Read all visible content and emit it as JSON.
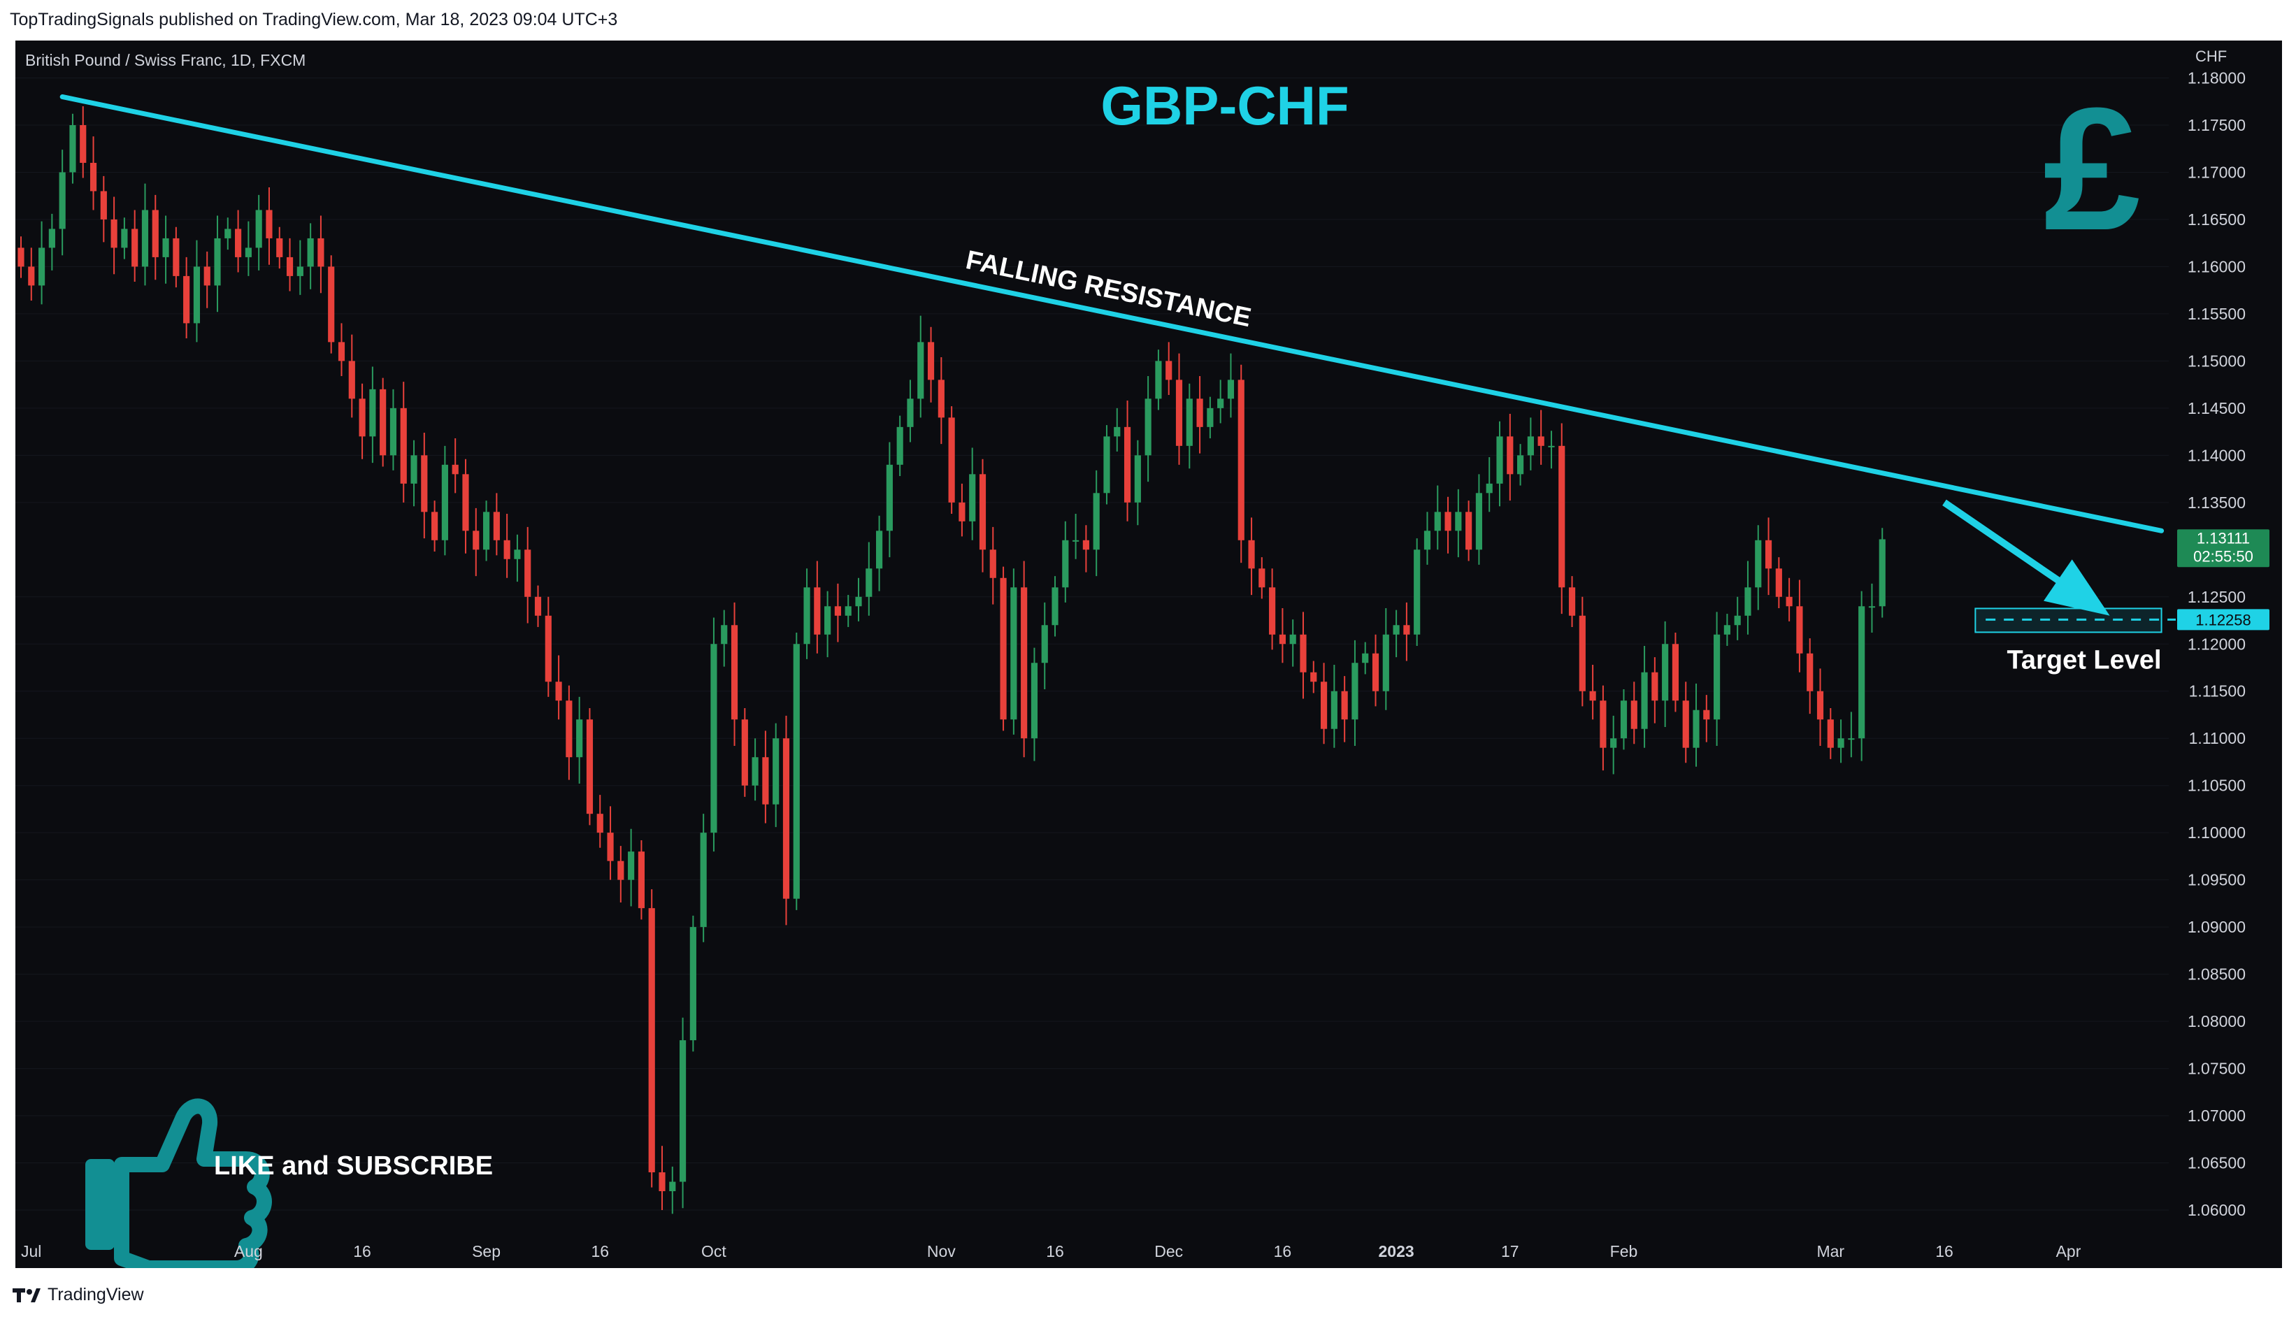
{
  "header": {
    "published_by": "TopTradingSignals published on TradingView.com, Mar 18, 2023 09:04 UTC+3"
  },
  "footer": {
    "brand": "TradingView"
  },
  "symbol": {
    "name": "British Pound / Swiss Franc, 1D, FXCM"
  },
  "overlay": {
    "title": "GBP-CHF",
    "currency_glyph": "£",
    "trendline_label": "FALLING RESISTANCE",
    "target_label": "Target Level",
    "cta": "LIKE and SUBSCRIBE"
  },
  "axis": {
    "currency": "CHF",
    "ticks": [
      "1.18000",
      "1.17500",
      "1.17000",
      "1.16500",
      "1.16000",
      "1.15500",
      "1.15000",
      "1.14500",
      "1.14000",
      "1.13500",
      "1.12500",
      "1.12000",
      "1.11500",
      "1.11000",
      "1.10500",
      "1.10000",
      "1.09500",
      "1.09000",
      "1.08500",
      "1.08000",
      "1.07500",
      "1.07000",
      "1.06500",
      "1.06000"
    ],
    "last_price": "1.13111",
    "countdown": "02:55:50",
    "target_price": "1.12258",
    "x_labels": [
      {
        "t": "Jul",
        "i": 0
      },
      {
        "t": "Aug",
        "i": 22
      },
      {
        "t": "16",
        "i": 33
      },
      {
        "t": "Sep",
        "i": 45
      },
      {
        "t": "16",
        "i": 56
      },
      {
        "t": "Oct",
        "i": 67
      },
      {
        "t": "Nov",
        "i": 89
      },
      {
        "t": "16",
        "i": 100
      },
      {
        "t": "Dec",
        "i": 111
      },
      {
        "t": "16",
        "i": 122
      },
      {
        "t": "2023",
        "i": 133
      },
      {
        "t": "17",
        "i": 144
      },
      {
        "t": "Feb",
        "i": 155
      },
      {
        "t": "Mar",
        "i": 175
      },
      {
        "t": "16",
        "i": 186
      },
      {
        "t": "Apr",
        "i": 198
      }
    ]
  },
  "chart_data": {
    "type": "candlestick",
    "interval": "1D",
    "y_range": [
      1.058,
      1.181
    ],
    "x_range": [
      0,
      205
    ],
    "trendline": {
      "from": {
        "i": 4,
        "price": 1.178
      },
      "to": {
        "i": 207,
        "price": 1.132
      }
    },
    "target_level": 1.12258,
    "arrow": {
      "from": {
        "i": 186,
        "price": 1.135
      },
      "to": {
        "i": 202,
        "price": 1.123
      }
    },
    "series": [
      {
        "name": "GBP/CHF daily close",
        "close_start": 1.162,
        "closes": [
          1.16,
          1.158,
          1.162,
          1.164,
          1.17,
          1.175,
          1.171,
          1.168,
          1.165,
          1.162,
          1.164,
          1.16,
          1.166,
          1.161,
          1.163,
          1.159,
          1.154,
          1.16,
          1.158,
          1.163,
          1.164,
          1.161,
          1.162,
          1.166,
          1.163,
          1.161,
          1.159,
          1.16,
          1.163,
          1.16,
          1.152,
          1.15,
          1.146,
          1.142,
          1.147,
          1.14,
          1.145,
          1.137,
          1.14,
          1.134,
          1.131,
          1.139,
          1.138,
          1.132,
          1.13,
          1.134,
          1.131,
          1.129,
          1.13,
          1.125,
          1.123,
          1.116,
          1.114,
          1.108,
          1.112,
          1.102,
          1.1,
          1.097,
          1.095,
          1.098,
          1.092,
          1.064,
          1.062,
          1.063,
          1.078,
          1.09,
          1.1,
          1.12,
          1.122,
          1.112,
          1.105,
          1.108,
          1.103,
          1.11,
          1.093,
          1.12,
          1.126,
          1.121,
          1.124,
          1.123,
          1.124,
          1.125,
          1.128,
          1.132,
          1.139,
          1.143,
          1.146,
          1.152,
          1.148,
          1.144,
          1.135,
          1.133,
          1.138,
          1.13,
          1.127,
          1.112,
          1.126,
          1.11,
          1.118,
          1.122,
          1.126,
          1.131,
          1.131,
          1.13,
          1.136,
          1.142,
          1.143,
          1.135,
          1.14,
          1.146,
          1.15,
          1.148,
          1.141,
          1.146,
          1.143,
          1.145,
          1.146,
          1.148,
          1.131,
          1.128,
          1.126,
          1.121,
          1.12,
          1.121,
          1.117,
          1.116,
          1.111,
          1.115,
          1.112,
          1.118,
          1.119,
          1.115,
          1.121,
          1.122,
          1.121,
          1.13,
          1.132,
          1.134,
          1.132,
          1.134,
          1.13,
          1.136,
          1.137,
          1.142,
          1.138,
          1.14,
          1.142,
          1.141,
          1.141,
          1.126,
          1.123,
          1.115,
          1.114,
          1.109,
          1.11,
          1.114,
          1.111,
          1.117,
          1.114,
          1.12,
          1.114,
          1.109,
          1.113,
          1.112,
          1.121,
          1.122,
          1.123,
          1.126,
          1.131,
          1.128,
          1.125,
          1.124,
          1.119,
          1.115,
          1.112,
          1.109,
          1.11,
          1.11,
          1.124,
          1.124,
          1.1311
        ]
      }
    ]
  }
}
